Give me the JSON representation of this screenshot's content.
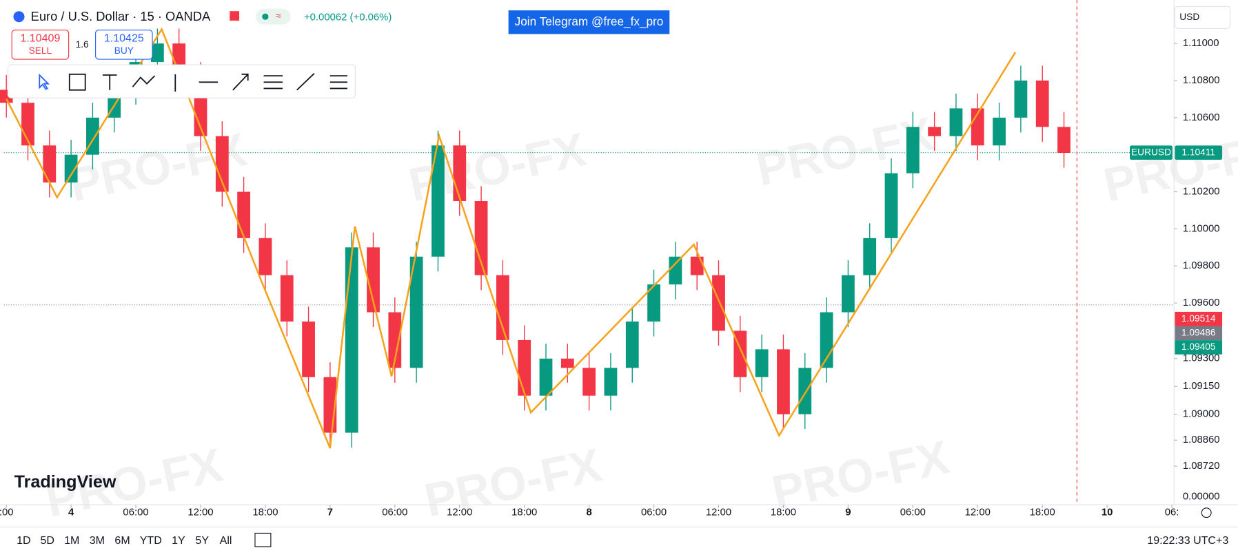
{
  "header": {
    "symbol": "Euro / U.S. Dollar · 15 · OANDA",
    "change": "+0.00062 (+0.06%)",
    "sell_price": "1.10409",
    "sell_label": "SELL",
    "spread": "1.6",
    "buy_price": "1.10425",
    "buy_label": "BUY",
    "banner": "Join Telegram @free_fx_pro",
    "currency": "USD"
  },
  "logo": "TradingView",
  "watermark": "PRO-FX",
  "chart_data": {
    "type": "candlestick",
    "up_color": "#089981",
    "down_color": "#f23645",
    "x": [
      -6,
      -4,
      -2,
      0,
      2,
      4,
      6,
      8,
      10,
      12,
      14,
      16,
      18,
      20,
      22,
      24,
      26,
      28,
      30,
      32,
      34,
      36,
      38,
      40,
      42,
      44,
      46,
      48,
      50,
      52,
      54,
      56,
      58,
      60,
      62,
      64,
      66,
      68,
      70,
      72,
      74,
      76,
      78,
      80,
      82,
      84,
      86,
      88,
      90,
      92
    ],
    "open": [
      1.1075,
      1.1068,
      1.1045,
      1.1025,
      1.104,
      1.106,
      1.1075,
      1.109,
      1.11,
      1.1082,
      1.105,
      1.102,
      1.0995,
      1.0975,
      1.095,
      1.092,
      1.089,
      1.099,
      1.0955,
      1.0925,
      1.0985,
      1.1045,
      1.1015,
      1.0975,
      1.094,
      1.091,
      1.093,
      1.0925,
      1.091,
      1.0925,
      1.095,
      1.097,
      1.0985,
      1.0975,
      1.0945,
      1.092,
      1.0935,
      1.09,
      1.0925,
      1.0955,
      1.0975,
      1.0995,
      1.103,
      1.1055,
      1.105,
      1.1065,
      1.1045,
      1.106,
      1.108,
      1.1055
    ],
    "high": [
      1.1083,
      1.1076,
      1.1053,
      1.1048,
      1.1068,
      1.1083,
      1.1098,
      1.1108,
      1.1108,
      1.109,
      1.1058,
      1.1028,
      1.1003,
      1.0983,
      1.0958,
      1.0928,
      1.0998,
      1.0998,
      1.0963,
      1.0993,
      1.1053,
      1.1053,
      1.1023,
      1.0983,
      1.0948,
      1.0938,
      1.0938,
      1.0933,
      1.0933,
      1.0958,
      1.0978,
      1.0993,
      1.0993,
      1.0983,
      1.0953,
      1.0943,
      1.0943,
      1.0933,
      1.0963,
      1.0983,
      1.1003,
      1.1038,
      1.1063,
      1.1063,
      1.1073,
      1.1073,
      1.1068,
      1.1088,
      1.1088,
      1.1063
    ],
    "low": [
      1.106,
      1.1037,
      1.1017,
      1.1017,
      1.1032,
      1.1052,
      1.1067,
      1.1082,
      1.1074,
      1.1042,
      1.1012,
      1.0987,
      1.0967,
      1.0942,
      1.0912,
      1.0882,
      1.0882,
      1.0947,
      1.0917,
      1.0917,
      1.0977,
      1.1007,
      1.0967,
      1.0932,
      1.0902,
      1.0902,
      1.0917,
      1.0902,
      1.0902,
      1.0917,
      1.0942,
      1.0962,
      1.0967,
      1.0937,
      1.0912,
      1.0912,
      1.0892,
      1.0892,
      1.0917,
      1.0947,
      1.0967,
      1.0987,
      1.1022,
      1.1042,
      1.1042,
      1.1037,
      1.1037,
      1.1052,
      1.1047,
      1.1033
    ],
    "close": [
      1.1068,
      1.1045,
      1.1025,
      1.104,
      1.106,
      1.1075,
      1.109,
      1.11,
      1.1082,
      1.105,
      1.102,
      1.0995,
      1.0975,
      1.095,
      1.092,
      1.089,
      1.099,
      1.0955,
      1.0925,
      1.0985,
      1.1045,
      1.1015,
      1.0975,
      1.094,
      1.091,
      1.093,
      1.0925,
      1.091,
      1.0925,
      1.095,
      1.097,
      1.0985,
      1.0975,
      1.0945,
      1.092,
      1.0935,
      1.09,
      1.0925,
      1.0955,
      1.0975,
      1.0995,
      1.103,
      1.1055,
      1.105,
      1.1065,
      1.1045,
      1.106,
      1.108,
      1.1055,
      1.1041
    ],
    "zigzag": {
      "color": "#f7a21b",
      "x": [
        -6.0,
        -1.3,
        8.4,
        17.6,
        24.0,
        26.3,
        29.7,
        34.1,
        42.6,
        57.7,
        65.6,
        87.5
      ],
      "values": [
        1.10702,
        1.1017,
        1.11077,
        1.09723,
        1.08817,
        1.10013,
        1.09204,
        1.10502,
        1.09009,
        1.09915,
        1.08885,
        1.10953
      ]
    },
    "xlim": [
      -6.22,
      102.2
    ],
    "ylim": [
      1.08511,
      1.11234
    ],
    "xticks": [
      {
        "value": -6,
        "label": ":00"
      },
      {
        "value": 0,
        "label": "4"
      },
      {
        "value": 6,
        "label": "06:00"
      },
      {
        "value": 12,
        "label": "12:00"
      },
      {
        "value": 18,
        "label": "18:00"
      },
      {
        "value": 24,
        "label": "7"
      },
      {
        "value": 30,
        "label": "06:00"
      },
      {
        "value": 36,
        "label": "12:00"
      },
      {
        "value": 42,
        "label": "18:00"
      },
      {
        "value": 48,
        "label": "8"
      },
      {
        "value": 54,
        "label": "06:00"
      },
      {
        "value": 60,
        "label": "12:00"
      },
      {
        "value": 66,
        "label": "18:00"
      },
      {
        "value": 72,
        "label": "9"
      },
      {
        "value": 78,
        "label": "06:00"
      },
      {
        "value": 84,
        "label": "12:00"
      },
      {
        "value": 90,
        "label": "18:00"
      },
      {
        "value": 96,
        "label": "10"
      },
      {
        "value": 102,
        "label": "06:"
      }
    ],
    "yticks": [
      {
        "value": 1.11,
        "label": "1.11000"
      },
      {
        "value": 1.108,
        "label": "1.10800"
      },
      {
        "value": 1.106,
        "label": "1.10600"
      },
      {
        "value": 1.102,
        "label": "1.10200"
      },
      {
        "value": 1.1,
        "label": "1.10000"
      },
      {
        "value": 1.098,
        "label": "1.09800"
      },
      {
        "value": 1.096,
        "label": "1.09600"
      },
      {
        "value": 1.093,
        "label": "1.09300"
      },
      {
        "value": 1.0915,
        "label": "1.09150"
      },
      {
        "value": 1.09,
        "label": "1.09000"
      },
      {
        "value": 1.0886,
        "label": "1.08860"
      },
      {
        "value": 1.0872,
        "label": "1.08720"
      }
    ],
    "axis_bottom_label": "0.00000",
    "last_price": {
      "symbol": "EURUSD",
      "value": 1.10411,
      "color": "#089981"
    },
    "reference_line": 1.0959,
    "time_marker_x": 93.2,
    "price_badges": [
      {
        "value": 1.09514,
        "color": "#f23645"
      },
      {
        "value": 1.09486,
        "color": "#787b86"
      },
      {
        "value": 1.09405,
        "color": "#089981"
      }
    ]
  },
  "footer": {
    "ranges": [
      "1D",
      "5D",
      "1M",
      "3M",
      "6M",
      "YTD",
      "1Y",
      "5Y",
      "All"
    ],
    "clock": "19:22:33 UTC+3"
  }
}
